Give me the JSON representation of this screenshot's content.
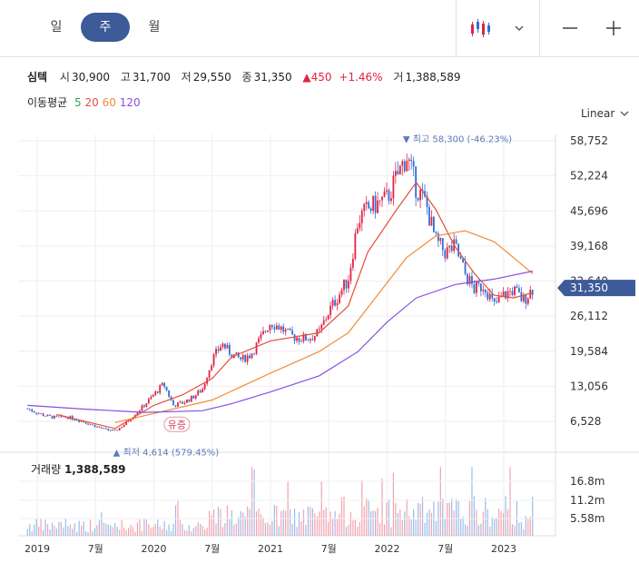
{
  "tabs": [
    {
      "label": "일"
    },
    {
      "label": "주",
      "active": true
    },
    {
      "label": "월"
    }
  ],
  "summary": {
    "name": "심텍",
    "open_label": "시",
    "open": "30,900",
    "high_label": "고",
    "high": "31,700",
    "low_label": "저",
    "low": "29,550",
    "close_label": "종",
    "close": "31,350",
    "change": "450",
    "change_pct": "+1.46%",
    "volume_label": "거",
    "volume": "1,388,589"
  },
  "ma_legend": {
    "label": "이동평균",
    "items": [
      {
        "name": "5",
        "color": "#2ea44f"
      },
      {
        "name": "20",
        "color": "#e74c3c"
      },
      {
        "name": "60",
        "color": "#f08c3a"
      },
      {
        "name": "120",
        "color": "#8a4fe0"
      }
    ]
  },
  "scale": {
    "label": "Linear"
  },
  "colors": {
    "up": "#e12343",
    "down": "#2f6fd6",
    "accent": "#3d5a99"
  },
  "chart_data": {
    "type": "candlestick",
    "y_ticks": [
      58752,
      52224,
      45696,
      39168,
      32640,
      26112,
      19584,
      13056,
      6528
    ],
    "y_tick_labels": [
      "58,752",
      "52,224",
      "45,696",
      "39,168",
      "32,640",
      "26,112",
      "19,584",
      "13,056",
      "6,528"
    ],
    "x_ticks": [
      {
        "label": "2019",
        "date": "2019-01"
      },
      {
        "label": "7월",
        "date": "2019-07"
      },
      {
        "label": "2020",
        "date": "2020-01"
      },
      {
        "label": "7월",
        "date": "2020-07"
      },
      {
        "label": "2021",
        "date": "2021-01"
      },
      {
        "label": "7월",
        "date": "2021-07"
      },
      {
        "label": "2022",
        "date": "2022-01"
      },
      {
        "label": "7월",
        "date": "2022-07"
      },
      {
        "label": "2023",
        "date": "2023-01"
      }
    ],
    "last_price_label": "31,350",
    "last_price": 31350,
    "max_annotation": {
      "text": "▼ 최고 58,300 (-46.23%)",
      "value": 58300,
      "date": "2022-03"
    },
    "min_annotation": {
      "text": "▲ 최저 4,614 (579.45%)",
      "value": 4614,
      "date": "2019-09"
    },
    "event_label": {
      "text": "유증",
      "date": "2020-03"
    },
    "price_path": [
      [
        "2018-12",
        8900
      ],
      [
        "2019-01",
        8100
      ],
      [
        "2019-02",
        7500
      ],
      [
        "2019-03",
        7200
      ],
      [
        "2019-04",
        7400
      ],
      [
        "2019-05",
        6900
      ],
      [
        "2019-06",
        6300
      ],
      [
        "2019-07",
        5600
      ],
      [
        "2019-08",
        5000
      ],
      [
        "2019-09",
        4700
      ],
      [
        "2019-10",
        6000
      ],
      [
        "2019-11",
        7800
      ],
      [
        "2019-12",
        9500
      ],
      [
        "2020-01",
        11500
      ],
      [
        "2020-02",
        13500
      ],
      [
        "2020-03",
        9500
      ],
      [
        "2020-04",
        10000
      ],
      [
        "2020-05",
        11000
      ],
      [
        "2020-06",
        12500
      ],
      [
        "2020-07",
        18000
      ],
      [
        "2020-08",
        21000
      ],
      [
        "2020-09",
        19000
      ],
      [
        "2020-10",
        18000
      ],
      [
        "2020-11",
        19000
      ],
      [
        "2020-12",
        22000
      ],
      [
        "2021-01",
        25000
      ],
      [
        "2021-02",
        24000
      ],
      [
        "2021-03",
        22500
      ],
      [
        "2021-04",
        22000
      ],
      [
        "2021-05",
        22000
      ],
      [
        "2021-06",
        23000
      ],
      [
        "2021-07",
        27000
      ],
      [
        "2021-08",
        30000
      ],
      [
        "2021-09",
        33000
      ],
      [
        "2021-10",
        44000
      ],
      [
        "2021-11",
        46000
      ],
      [
        "2021-12",
        47000
      ],
      [
        "2022-01",
        48000
      ],
      [
        "2022-02",
        52000
      ],
      [
        "2022-03",
        56000
      ],
      [
        "2022-04",
        50000
      ],
      [
        "2022-05",
        47000
      ],
      [
        "2022-06",
        40000
      ],
      [
        "2022-07",
        38000
      ],
      [
        "2022-08",
        39000
      ],
      [
        "2022-09",
        34000
      ],
      [
        "2022-10",
        31000
      ],
      [
        "2022-11",
        32000
      ],
      [
        "2022-12",
        28000
      ],
      [
        "2023-01",
        30000
      ],
      [
        "2023-02",
        31000
      ],
      [
        "2023-03",
        29000
      ],
      [
        "2023-04",
        31350
      ]
    ],
    "ma_series": [
      {
        "name": "20",
        "points": [
          [
            "2019-03",
            7800
          ],
          [
            "2019-09",
            5200
          ],
          [
            "2020-01",
            9500
          ],
          [
            "2020-04",
            11500
          ],
          [
            "2020-07",
            14500
          ],
          [
            "2020-09",
            18500
          ],
          [
            "2021-01",
            21500
          ],
          [
            "2021-06",
            23000
          ],
          [
            "2021-09",
            28000
          ],
          [
            "2021-11",
            38000
          ],
          [
            "2022-02",
            46000
          ],
          [
            "2022-04",
            51000
          ],
          [
            "2022-06",
            46000
          ],
          [
            "2022-08",
            39000
          ],
          [
            "2022-10",
            34000
          ],
          [
            "2022-12",
            30000
          ],
          [
            "2023-02",
            29500
          ],
          [
            "2023-04",
            30500
          ]
        ]
      },
      {
        "name": "60",
        "points": [
          [
            "2019-09",
            6300
          ],
          [
            "2020-01",
            8000
          ],
          [
            "2020-07",
            10500
          ],
          [
            "2021-01",
            15500
          ],
          [
            "2021-06",
            19500
          ],
          [
            "2021-09",
            23000
          ],
          [
            "2021-12",
            30000
          ],
          [
            "2022-03",
            37000
          ],
          [
            "2022-06",
            41000
          ],
          [
            "2022-09",
            42000
          ],
          [
            "2022-12",
            40000
          ],
          [
            "2023-02",
            37000
          ],
          [
            "2023-04",
            34000
          ]
        ]
      },
      {
        "name": "120",
        "points": [
          [
            "2018-12",
            9500
          ],
          [
            "2019-06",
            8800
          ],
          [
            "2019-12",
            8200
          ],
          [
            "2020-06",
            8500
          ],
          [
            "2020-09",
            9800
          ],
          [
            "2021-01",
            12000
          ],
          [
            "2021-06",
            15000
          ],
          [
            "2021-10",
            19500
          ],
          [
            "2022-01",
            25000
          ],
          [
            "2022-04",
            29500
          ],
          [
            "2022-08",
            32000
          ],
          [
            "2022-12",
            33000
          ],
          [
            "2023-04",
            34500
          ]
        ]
      }
    ],
    "volume": {
      "label": "거래량",
      "value": "1,388,589",
      "y_ticks": [
        16800000,
        11200000,
        5580000
      ],
      "y_tick_labels": [
        "16.8m",
        "11.2m",
        "5.58m"
      ]
    }
  }
}
